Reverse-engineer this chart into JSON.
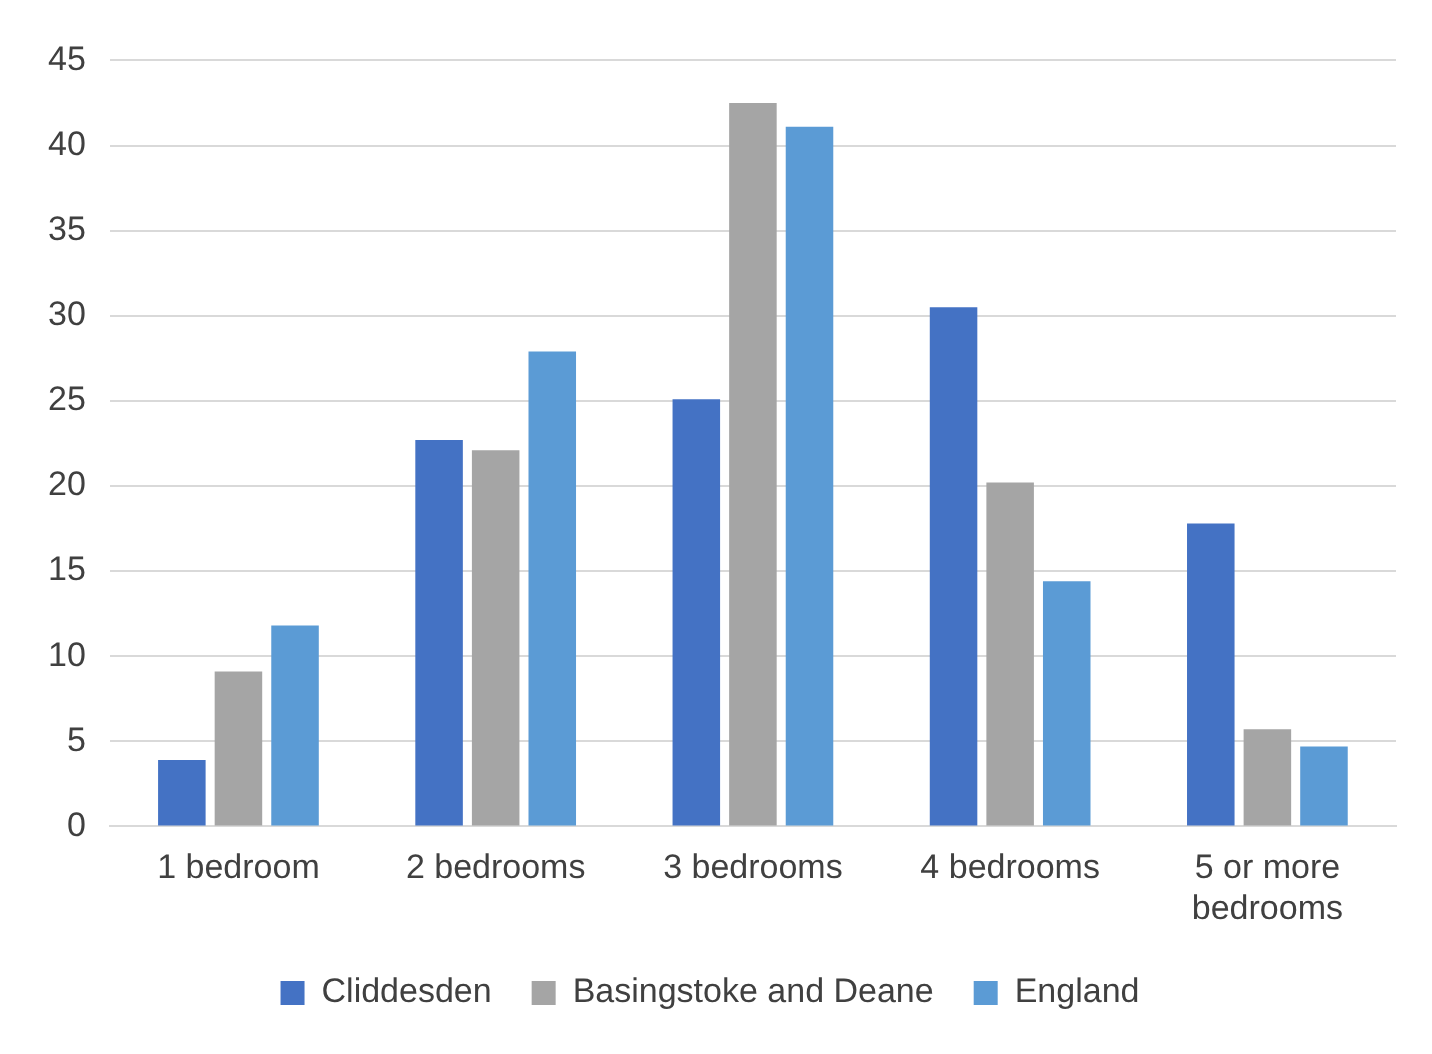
{
  "chart_data": {
    "type": "bar",
    "categories": [
      "1 bedroom",
      "2 bedrooms",
      "3 bedrooms",
      "4 bedrooms",
      "5 or more bedrooms"
    ],
    "series": [
      {
        "name": "Cliddesden",
        "color": "#4472c4",
        "values": [
          3.9,
          22.7,
          25.1,
          30.5,
          17.8
        ]
      },
      {
        "name": "Basingstoke and Deane",
        "color": "#a5a5a5",
        "values": [
          9.1,
          22.1,
          42.5,
          20.2,
          5.7
        ]
      },
      {
        "name": "England",
        "color": "#5b9bd5",
        "values": [
          11.8,
          27.9,
          41.1,
          14.4,
          4.7
        ]
      }
    ],
    "ylim": [
      0,
      45
    ],
    "yticks": [
      0,
      5,
      10,
      15,
      20,
      25,
      30,
      35,
      40,
      45
    ],
    "grid": "y",
    "legend": "bottom"
  }
}
